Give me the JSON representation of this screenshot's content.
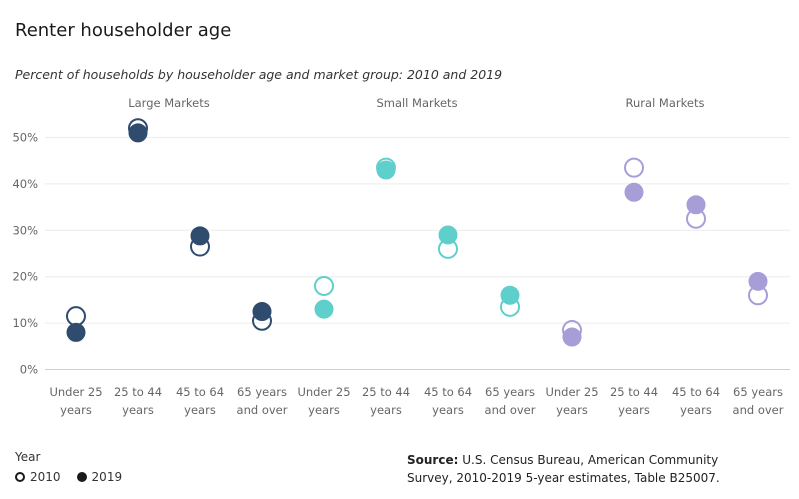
{
  "title": "Renter householder age",
  "subtitle": "Percent of households by householder age and market group: 2010 and 2019",
  "legend": {
    "title": "Year",
    "items": [
      {
        "label": "2010",
        "style": "open"
      },
      {
        "label": "2019",
        "style": "filled"
      }
    ]
  },
  "source": {
    "label": "Source:",
    "text": "U.S. Census Bureau, American Community Survey, 2010-2019 5-year estimates, Table B25007."
  },
  "chart_data": {
    "type": "scatter",
    "y_ticks": [
      "0%",
      "10%",
      "20%",
      "30%",
      "40%",
      "50%"
    ],
    "ylim": [
      0,
      55
    ],
    "groups": [
      {
        "name": "Large Markets",
        "color": "#2f4b6e",
        "categories": [
          [
            "Under 25",
            "years"
          ],
          [
            "25 to 44",
            "years"
          ],
          [
            "45 to 64",
            "years"
          ],
          [
            "65 years",
            "and over"
          ]
        ],
        "y2010": [
          11.5,
          52.0,
          26.5,
          10.5
        ],
        "y2019": [
          8.0,
          51.0,
          28.8,
          12.5
        ]
      },
      {
        "name": "Small Markets",
        "color": "#5fcfcb",
        "categories": [
          [
            "Under 25",
            "years"
          ],
          [
            "25 to 44",
            "years"
          ],
          [
            "45 to 64",
            "years"
          ],
          [
            "65 years",
            "and over"
          ]
        ],
        "y2010": [
          18.0,
          43.5,
          26.0,
          13.5
        ],
        "y2019": [
          13.0,
          43.0,
          29.0,
          16.0
        ]
      },
      {
        "name": "Rural Markets",
        "color": "#a79ed8",
        "categories": [
          [
            "Under 25",
            "years"
          ],
          [
            "25 to 44",
            "years"
          ],
          [
            "45 to 64",
            "years"
          ],
          [
            "65 years",
            "and over"
          ]
        ],
        "y2010": [
          8.5,
          43.5,
          32.5,
          16.0
        ],
        "y2019": [
          7.0,
          38.2,
          35.5,
          19.0
        ]
      }
    ]
  }
}
